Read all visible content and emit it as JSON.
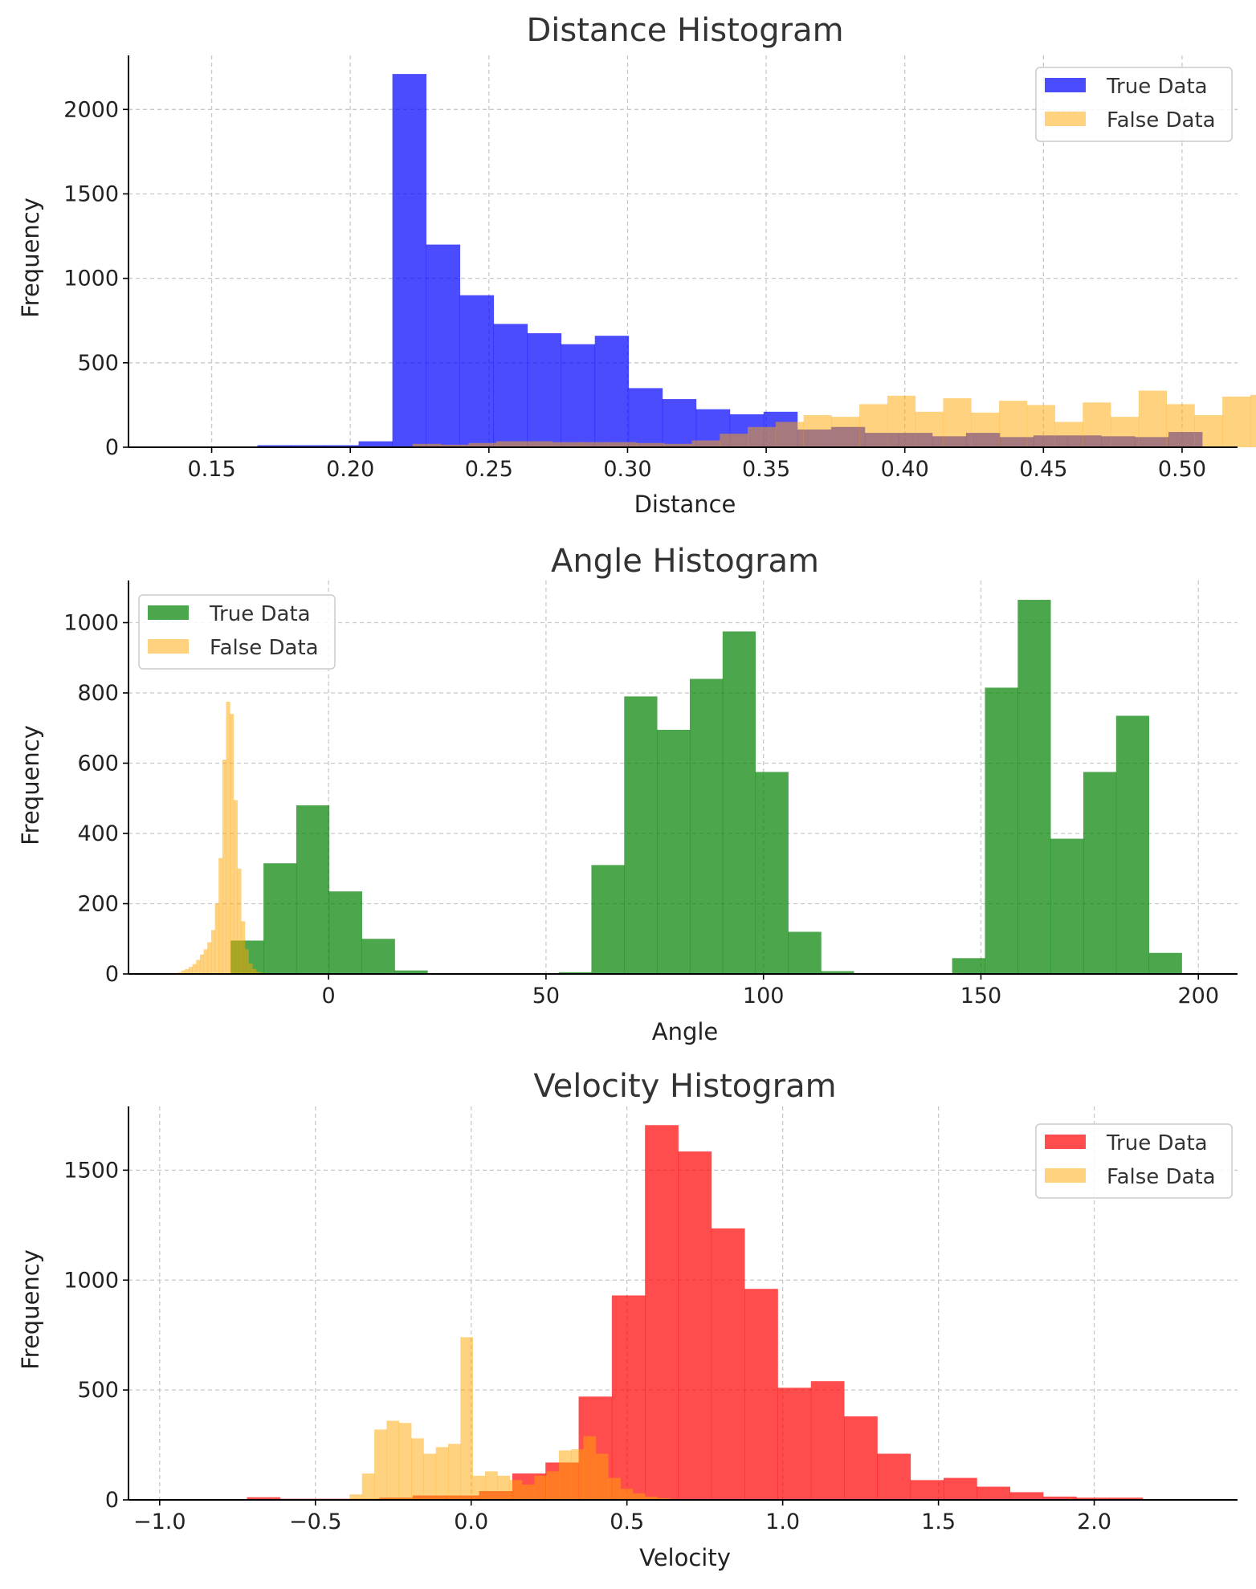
{
  "chart_data": [
    {
      "type": "bar",
      "title": "Distance Histogram",
      "xlabel": "Distance",
      "ylabel": "Frequency",
      "xlim": [
        0.12,
        0.52
      ],
      "ylim": [
        0,
        2320
      ],
      "xticks": [
        0.15,
        0.2,
        0.25,
        0.3,
        0.35,
        0.4,
        0.45,
        0.5
      ],
      "xtick_labels": [
        "0.15",
        "0.20",
        "0.25",
        "0.30",
        "0.35",
        "0.40",
        "0.45",
        "0.50"
      ],
      "yticks": [
        0,
        500,
        1000,
        1500,
        2000
      ],
      "ytick_labels": [
        "0",
        "500",
        "1000",
        "1500",
        "2000"
      ],
      "grid": true,
      "legend_position": "top-right",
      "series": [
        {
          "name": "True Data",
          "color": "#0000ff",
          "opacity": 0.7,
          "bin_start": 0.1665,
          "bin_width": 0.01217,
          "values": [
            12,
            12,
            12,
            35,
            2210,
            1200,
            900,
            730,
            675,
            610,
            660,
            350,
            285,
            225,
            195,
            210,
            105,
            120,
            85,
            85,
            65,
            85,
            60,
            70,
            70,
            65,
            60,
            90
          ]
        },
        {
          "name": "False Data",
          "color": "#ffa500",
          "opacity": 0.5,
          "bin_start": 0.2225,
          "bin_width": 0.01007,
          "values": [
            20,
            15,
            25,
            35,
            35,
            30,
            30,
            30,
            25,
            20,
            40,
            80,
            120,
            150,
            190,
            180,
            255,
            305,
            210,
            290,
            205,
            275,
            250,
            150,
            265,
            180,
            335,
            255,
            190,
            300,
            310
          ]
        }
      ]
    },
    {
      "type": "bar",
      "title": "Angle Histogram",
      "xlabel": "Angle",
      "ylabel": "Frequency",
      "xlim": [
        -46,
        209
      ],
      "ylim": [
        0,
        1120
      ],
      "xticks": [
        0,
        50,
        100,
        150,
        200
      ],
      "xtick_labels": [
        "0",
        "50",
        "100",
        "150",
        "200"
      ],
      "yticks": [
        0,
        200,
        400,
        600,
        800,
        1000
      ],
      "ytick_labels": [
        "0",
        "200",
        "400",
        "600",
        "800",
        "1000"
      ],
      "grid": true,
      "legend_position": "top-left",
      "series": [
        {
          "name": "True Data",
          "color": "#008000",
          "opacity": 0.7,
          "bin_start": -22.5,
          "bin_width": 7.54,
          "values": [
            95,
            315,
            480,
            235,
            100,
            10,
            0,
            0,
            0,
            0,
            5,
            310,
            790,
            695,
            840,
            975,
            575,
            120,
            8,
            0,
            0,
            0,
            45,
            815,
            1065,
            385,
            575,
            735,
            60
          ]
        },
        {
          "name": "False Data",
          "color": "#ffa500",
          "opacity": 0.5,
          "bin_start": -35.6,
          "bin_width": 0.86,
          "values": [
            3,
            5,
            10,
            14,
            20,
            28,
            40,
            55,
            70,
            90,
            125,
            200,
            330,
            610,
            775,
            740,
            495,
            300,
            150,
            70,
            30,
            14,
            6,
            3
          ]
        }
      ]
    },
    {
      "type": "bar",
      "title": "Velocity Histogram",
      "xlabel": "Velocity",
      "ylabel": "Frequency",
      "xlim": [
        -1.1,
        2.46
      ],
      "ylim": [
        0,
        1790
      ],
      "xticks": [
        -1.0,
        -0.5,
        0.0,
        0.5,
        1.0,
        1.5,
        2.0
      ],
      "xtick_labels": [
        "−1.0",
        "−0.5",
        "0.0",
        "0.5",
        "1.0",
        "1.5",
        "2.0"
      ],
      "yticks": [
        0,
        500,
        1000,
        1500
      ],
      "ytick_labels": [
        "0",
        "500",
        "1000",
        "1500"
      ],
      "grid": true,
      "legend_position": "top-right",
      "series": [
        {
          "name": "True Data",
          "color": "#ff0000",
          "opacity": 0.7,
          "bin_start": -0.72,
          "bin_width": 0.1065,
          "values": [
            12,
            5,
            5,
            5,
            10,
            20,
            20,
            40,
            120,
            170,
            470,
            930,
            1705,
            1585,
            1235,
            960,
            510,
            540,
            380,
            210,
            90,
            100,
            60,
            35,
            15,
            10,
            10
          ]
        },
        {
          "name": "False Data",
          "color": "#ffa500",
          "opacity": 0.5,
          "bin_start": -0.39,
          "bin_width": 0.0395,
          "values": [
            25,
            120,
            320,
            360,
            350,
            280,
            210,
            240,
            255,
            740,
            110,
            130,
            110,
            90,
            70,
            110,
            130,
            225,
            230,
            290,
            210,
            100,
            50,
            30,
            15,
            8,
            4
          ]
        }
      ]
    }
  ]
}
